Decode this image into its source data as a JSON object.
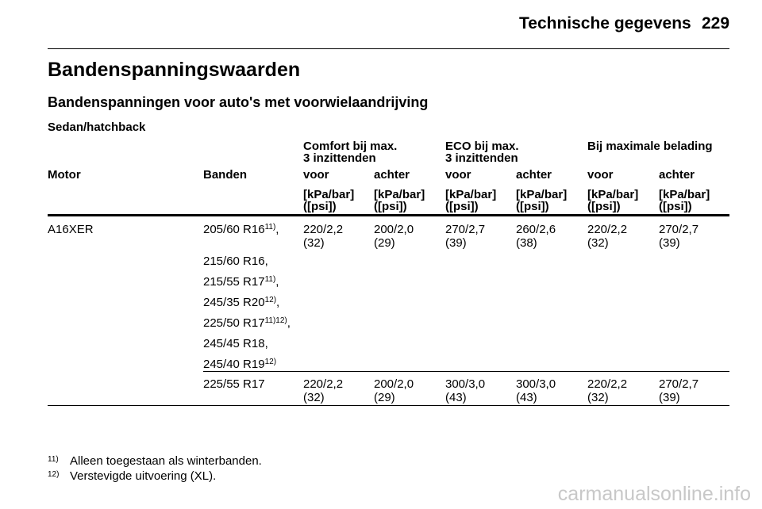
{
  "page": {
    "running_title": "Technische gegevens",
    "page_number": "229"
  },
  "section_title": "Bandenspanningswaarden",
  "subsection_title": "Bandenspanningen voor auto's met voorwielaandrijving",
  "subsubsection_title": "Sedan/hatchback",
  "table": {
    "groups": [
      {
        "line1": "Comfort bij max.",
        "line2": "3 inzittenden"
      },
      {
        "line1": "ECO bij max.",
        "line2": "3 inzittenden"
      },
      {
        "line1": "Bij maximale belading",
        "line2": ""
      }
    ],
    "columns": [
      "Motor",
      "Banden",
      "voor",
      "achter",
      "voor",
      "achter",
      "voor",
      "achter"
    ],
    "units": {
      "line1": "[kPa/bar]",
      "line2": "([psi])"
    },
    "rows": [
      {
        "motor": "A16XER",
        "tyres": [
          {
            "text": "205/60 R16",
            "sup": "11)",
            "suffix": ","
          },
          {
            "text": "215/60 R16,",
            "sup": "",
            "suffix": ""
          },
          {
            "text": "215/55 R17",
            "sup": "11)",
            "suffix": ","
          },
          {
            "text": "245/35 R20",
            "sup": "12)",
            "suffix": ","
          },
          {
            "text": "225/50 R17",
            "sup": "11)12)",
            "suffix": ","
          },
          {
            "text": "245/45 R18,",
            "sup": "",
            "suffix": ""
          },
          {
            "text": "245/40 R19",
            "sup": "12)",
            "suffix": ""
          }
        ],
        "values": [
          [
            "220/2,2",
            "(32)"
          ],
          [
            "200/2,0",
            "(29)"
          ],
          [
            "270/2,7",
            "(39)"
          ],
          [
            "260/2,6",
            "(38)"
          ],
          [
            "220/2,2",
            "(32)"
          ],
          [
            "270/2,7",
            "(39)"
          ]
        ]
      },
      {
        "motor": "",
        "tyres": [
          {
            "text": "225/55 R17",
            "sup": "",
            "suffix": ""
          }
        ],
        "values": [
          [
            "220/2,2",
            "(32)"
          ],
          [
            "200/2,0",
            "(29)"
          ],
          [
            "300/3,0",
            "(43)"
          ],
          [
            "300/3,0",
            "(43)"
          ],
          [
            "220/2,2",
            "(32)"
          ],
          [
            "270/2,7",
            "(39)"
          ]
        ]
      }
    ]
  },
  "footnotes": [
    {
      "mark": "11)",
      "text": "Alleen toegestaan als winterbanden."
    },
    {
      "mark": "12)",
      "text": "Verstevigde uitvoering (XL)."
    }
  ],
  "watermark": "carmanualsonline.info"
}
